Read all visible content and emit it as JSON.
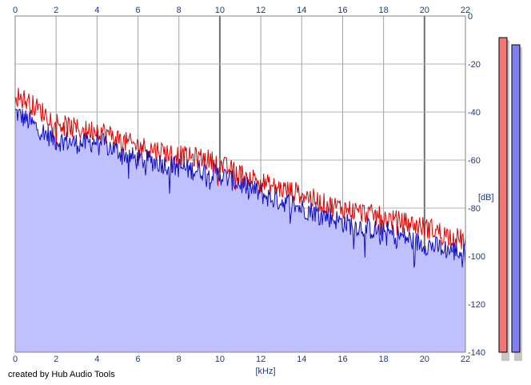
{
  "chart_data": {
    "type": "area",
    "xlabel": "[kHz]",
    "ylabel": "[dB]",
    "xlim": [
      0,
      22
    ],
    "ylim": [
      -140,
      0
    ],
    "x_ticks": [
      0,
      2,
      4,
      6,
      8,
      10,
      12,
      14,
      16,
      18,
      20,
      22
    ],
    "y_ticks": [
      -20,
      -40,
      -60,
      -80,
      -100,
      -120,
      -140
    ],
    "y_tick_top": "0",
    "x_spectrum_points": [
      0,
      0.5,
      1,
      1.5,
      2,
      2.5,
      3,
      3.5,
      4,
      4.5,
      5,
      5.5,
      6,
      6.5,
      7,
      7.5,
      8,
      8.5,
      9,
      9.5,
      10,
      10.5,
      11,
      11.5,
      12,
      12.5,
      13,
      13.5,
      14,
      14.5,
      15,
      15.5,
      16,
      16.5,
      17,
      17.5,
      18,
      18.5,
      19,
      19.5,
      20,
      20.5,
      21,
      21.5,
      22
    ],
    "series": [
      {
        "color": "#e00000",
        "values": [
          -33,
          -35,
          -38,
          -41,
          -44,
          -46,
          -47,
          -48,
          -47,
          -49,
          -51,
          -53,
          -54,
          -55,
          -56,
          -57,
          -58,
          -59,
          -59,
          -60,
          -62,
          -64,
          -66,
          -67,
          -69,
          -71,
          -72,
          -73,
          -74,
          -76,
          -78,
          -79,
          -80,
          -81,
          -82,
          -83,
          -84,
          -85,
          -86,
          -87,
          -88,
          -89,
          -91,
          -92,
          -94
        ]
      },
      {
        "color": "#1010c0",
        "fill": "#c0c0ff",
        "values": [
          -40,
          -43,
          -46,
          -49,
          -52,
          -52,
          -53,
          -53,
          -52,
          -54,
          -56,
          -58,
          -60,
          -60,
          -61,
          -62,
          -63,
          -64,
          -64,
          -65,
          -66,
          -68,
          -70,
          -72,
          -74,
          -76,
          -77,
          -78,
          -80,
          -81,
          -83,
          -84,
          -86,
          -87,
          -88,
          -89,
          -90,
          -91,
          -92,
          -94,
          -95,
          -96,
          -97,
          -98,
          -99
        ]
      }
    ],
    "grid": true
  },
  "meters": {
    "left_color": "#f07878",
    "right_color": "#8080f0",
    "left_level_db": -9,
    "right_level_db": -12
  },
  "footer": {
    "credit": "created by Hub Audio Tools"
  }
}
